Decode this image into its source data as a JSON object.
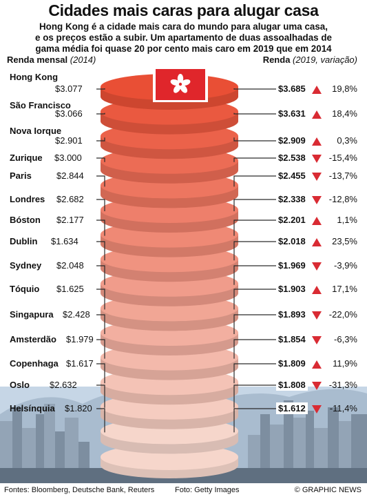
{
  "title": "Cidades mais caras para alugar casa",
  "subtitle_lines": [
    "Hong Kong é a cidade mais cara do mundo para alugar uma casa,",
    "e os preços estão a subir. Um apartamento de duas assoalhadas de",
    "gama média foi quase 20 por cento mais caro em 2019 que em 2014"
  ],
  "header_left": {
    "label": "Renda mensal",
    "note": "(2014)"
  },
  "header_right": {
    "label": "Renda",
    "note": "(2019, variação)"
  },
  "colors": {
    "top_disc": "#e94f35",
    "bottom_disc": "#f6d6cb",
    "arrow": "#d92b33",
    "connector": "#2a2a2a",
    "sky": "#c6d6e6"
  },
  "chart_data": {
    "type": "table",
    "rows": [
      {
        "city": "Hong Kong",
        "rent_2014": "$3.077",
        "rent_2019": "$3.685",
        "direction": "up",
        "change": "19,8%"
      },
      {
        "city": "São Francisco",
        "rent_2014": "$3.066",
        "rent_2019": "$3.631",
        "direction": "up",
        "change": "18,4%"
      },
      {
        "city": "Nova Iorque",
        "rent_2014": "$2.901",
        "rent_2019": "$2.909",
        "direction": "up",
        "change": "0,3%"
      },
      {
        "city": "Zurique",
        "rent_2014": "$3.000",
        "rent_2019": "$2.538",
        "direction": "down",
        "change": "-15,4%"
      },
      {
        "city": "Paris",
        "rent_2014": "$2.844",
        "rent_2019": "$2.455",
        "direction": "down",
        "change": "-13,7%"
      },
      {
        "city": "Londres",
        "rent_2014": "$2.682",
        "rent_2019": "$2.338",
        "direction": "down",
        "change": "-12,8%"
      },
      {
        "city": "Bóston",
        "rent_2014": "$2.177",
        "rent_2019": "$2.201",
        "direction": "up",
        "change": "1,1%"
      },
      {
        "city": "Dublin",
        "rent_2014": "$1.634",
        "rent_2019": "$2.018",
        "direction": "up",
        "change": "23,5%"
      },
      {
        "city": "Sydney",
        "rent_2014": "$2.048",
        "rent_2019": "$1.969",
        "direction": "down",
        "change": "-3,9%"
      },
      {
        "city": "Tóquio",
        "rent_2014": "$1.625",
        "rent_2019": "$1.903",
        "direction": "up",
        "change": "17,1%"
      },
      {
        "city": "Singapura",
        "rent_2014": "$2.428",
        "rent_2019": "$1.893",
        "direction": "down",
        "change": "-22,0%"
      },
      {
        "city": "Amsterdão",
        "rent_2014": "$1.979",
        "rent_2019": "$1.854",
        "direction": "down",
        "change": "-6,3%"
      },
      {
        "city": "Copenhaga",
        "rent_2014": "$1.617",
        "rent_2019": "$1.809",
        "direction": "up",
        "change": "11,9%"
      },
      {
        "city": "Oslo",
        "rent_2014": "$2.632",
        "rent_2019": "$1.808",
        "direction": "down",
        "change": "-31,3%"
      },
      {
        "city": "Helsínquia",
        "rent_2014": "$1.820",
        "rent_2019": "$1.612",
        "direction": "down",
        "change": "-11,4%"
      }
    ]
  },
  "footer": {
    "sources": "Fontes: Bloomberg, Deutsche Bank, Reuters",
    "photo": "Foto: Getty Images",
    "credit": "© GRAPHIC NEWS"
  }
}
